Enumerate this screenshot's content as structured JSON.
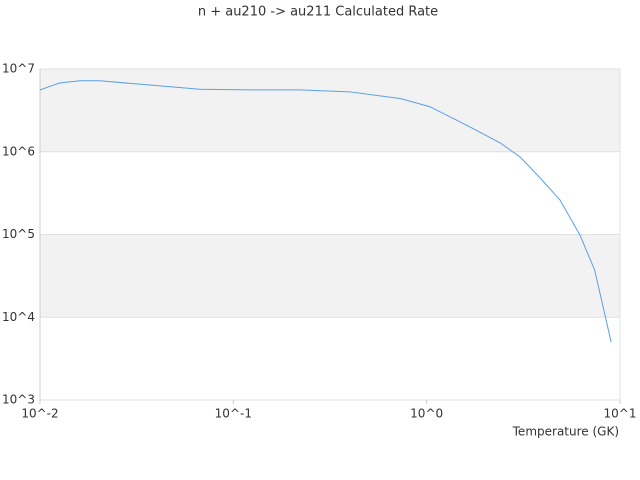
{
  "chart_data": {
    "type": "line",
    "title": "n + au210 -> au211 Calculated Rate",
    "x_label": "Temperature (GK)",
    "log_x": true,
    "log_y": true,
    "grid": true,
    "xlim": [
      0.01,
      10
    ],
    "ylim": [
      1000,
      10000000
    ],
    "xticks": [
      {
        "value": 0.01,
        "label": "10^-2"
      },
      {
        "value": 0.1,
        "label": "10^-1"
      },
      {
        "value": 1,
        "label": "10^0"
      },
      {
        "value": 10,
        "label": "10^1"
      }
    ],
    "yticks": [
      {
        "value": 1000,
        "label": "10^3"
      },
      {
        "value": 10000,
        "label": "10^4"
      },
      {
        "value": 100000,
        "label": "10^5"
      },
      {
        "value": 1000000,
        "label": "10^6"
      },
      {
        "value": 10000000,
        "label": "10^7"
      }
    ],
    "series": [
      {
        "name": "rate",
        "color": "#5aa0e6",
        "x": [
          0.01,
          0.0113,
          0.0127,
          0.0161,
          0.0204,
          0.037,
          0.067,
          0.122,
          0.22,
          0.4,
          0.73,
          1.04,
          1.67,
          2.4,
          3.05,
          3.87,
          4.9,
          6.2,
          7.4,
          9.0
        ],
        "values": [
          5570000,
          6200000,
          6800000,
          7200000,
          7200000,
          6400000,
          5700000,
          5600000,
          5600000,
          5300000,
          4400000,
          3500000,
          2000000,
          1280000,
          860000,
          480000,
          260000,
          99000,
          37000,
          5000
        ]
      }
    ]
  }
}
